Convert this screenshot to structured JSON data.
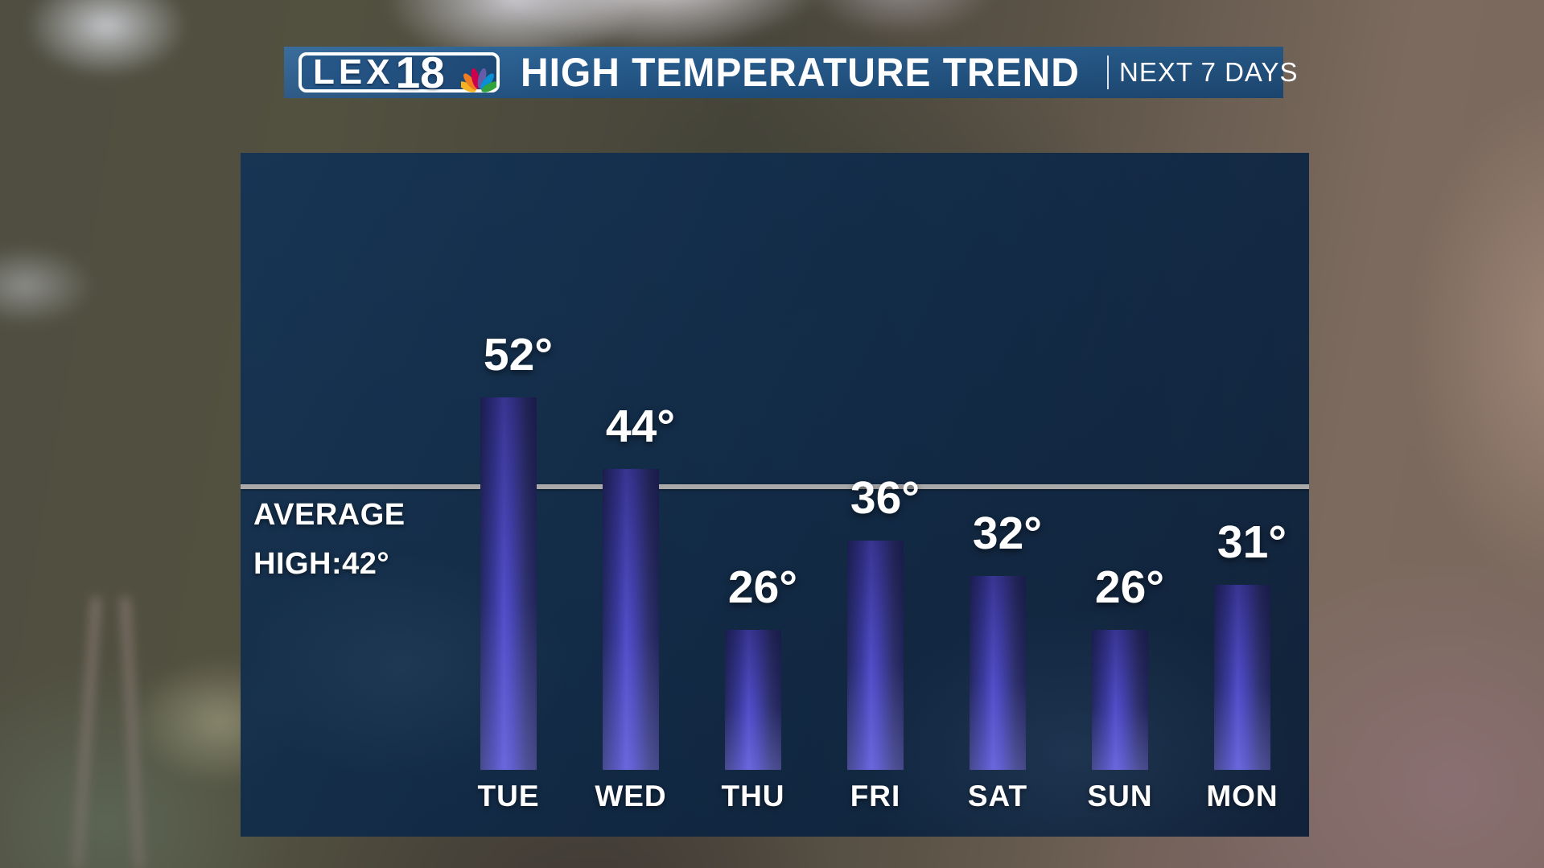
{
  "header": {
    "logo": {
      "station": "LEX",
      "number": "18",
      "icon": "nbc-peacock-icon"
    },
    "title": "HIGH TEMPERATURE TREND",
    "period": "NEXT 7 DAYS"
  },
  "chart_data": {
    "type": "bar",
    "title": "HIGH TEMPERATURE TREND",
    "subtitle": "NEXT 7 DAYS",
    "categories": [
      "TUE",
      "WED",
      "THU",
      "FRI",
      "SAT",
      "SUN",
      "MON"
    ],
    "values": [
      52,
      44,
      26,
      36,
      32,
      26,
      31
    ],
    "unit": "°",
    "value_labels": [
      "52°",
      "44°",
      "26°",
      "36°",
      "32°",
      "26°",
      "31°"
    ],
    "average_line": {
      "value": 42,
      "label_line1": "AVERAGE",
      "label_line2": "HIGH:42°",
      "color": "#a9a9a9"
    },
    "ylim": [
      10,
      79
    ],
    "grid": false,
    "legend": false,
    "colors": {
      "bar_edge": "#23265c",
      "bar_center": "#5652d2",
      "bar_bottom": "#6c68e6",
      "panel": "#0d2a4a",
      "header": "#235683",
      "text": "#ffffff"
    }
  }
}
